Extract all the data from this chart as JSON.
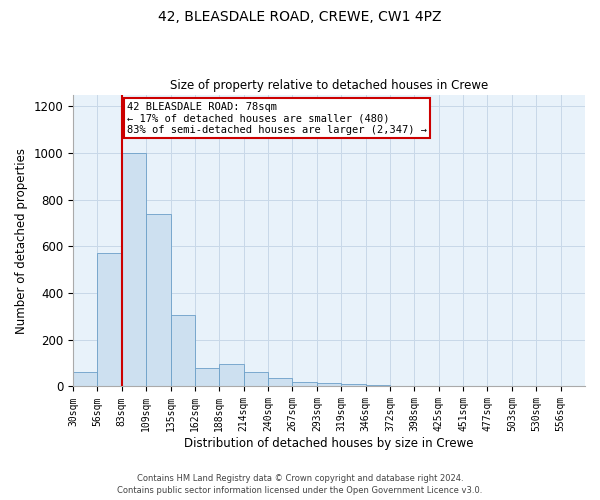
{
  "title_line1": "42, BLEASDALE ROAD, CREWE, CW1 4PZ",
  "title_line2": "Size of property relative to detached houses in Crewe",
  "xlabel": "Distribution of detached houses by size in Crewe",
  "ylabel": "Number of detached properties",
  "bar_color": "#cde0f0",
  "bar_edge_color": "#6b9fc8",
  "grid_color": "#c8d8e8",
  "background_color": "#e8f2fa",
  "bin_labels": [
    "30sqm",
    "56sqm",
    "83sqm",
    "109sqm",
    "135sqm",
    "162sqm",
    "188sqm",
    "214sqm",
    "240sqm",
    "267sqm",
    "293sqm",
    "319sqm",
    "346sqm",
    "372sqm",
    "398sqm",
    "425sqm",
    "451sqm",
    "477sqm",
    "503sqm",
    "530sqm",
    "556sqm"
  ],
  "bar_heights": [
    60,
    570,
    1000,
    740,
    305,
    80,
    95,
    60,
    35,
    20,
    15,
    10,
    5,
    2,
    2,
    1,
    1,
    1,
    1,
    1,
    0
  ],
  "ylim": [
    0,
    1250
  ],
  "yticks": [
    0,
    200,
    400,
    600,
    800,
    1000,
    1200
  ],
  "annotation_text": "42 BLEASDALE ROAD: 78sqm\n← 17% of detached houses are smaller (480)\n83% of semi-detached houses are larger (2,347) →",
  "vline_color": "#cc0000",
  "annotation_box_color": "#cc0000",
  "footer_line1": "Contains HM Land Registry data © Crown copyright and database right 2024.",
  "footer_line2": "Contains public sector information licensed under the Open Government Licence v3.0.",
  "fig_width": 6.0,
  "fig_height": 5.0,
  "dpi": 100
}
